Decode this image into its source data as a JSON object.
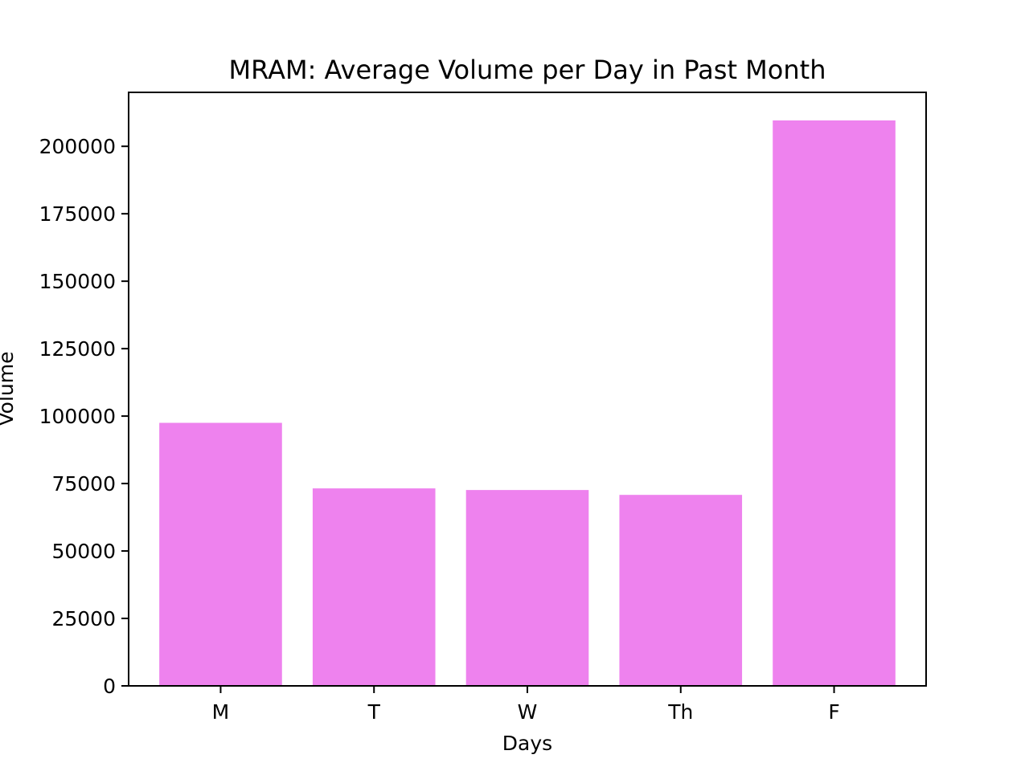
{
  "chart_data": {
    "type": "bar",
    "title": "MRAM: Average Volume per Day in Past Month",
    "xlabel": "Days",
    "ylabel": "Volume",
    "categories": [
      "M",
      "T",
      "W",
      "Th",
      "F"
    ],
    "values": [
      97500,
      73200,
      72600,
      70800,
      209600
    ],
    "ylim": [
      0,
      220000
    ],
    "yticks": [
      0,
      25000,
      50000,
      75000,
      100000,
      125000,
      150000,
      175000,
      200000
    ],
    "bar_color": "#ee82ee",
    "grid": false,
    "legend": "none"
  }
}
